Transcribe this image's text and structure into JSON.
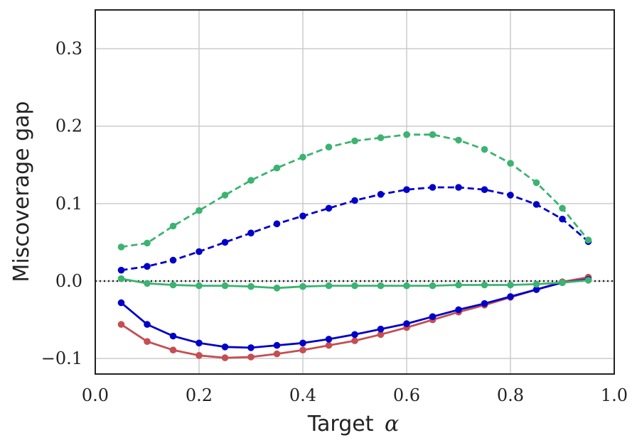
{
  "chart_data": {
    "type": "line",
    "title": "",
    "xlabel": "Target",
    "xlabel_symbol": "α",
    "ylabel": "Miscoverage gap",
    "xlim": [
      0.0,
      1.0
    ],
    "ylim": [
      -0.12,
      0.35
    ],
    "xticks": [
      "0.0",
      "0.2",
      "0.4",
      "0.6",
      "0.8",
      "1.0"
    ],
    "xtick_values": [
      0.0,
      0.2,
      0.4,
      0.6,
      0.8,
      1.0
    ],
    "yticks": [
      "−0.1",
      "0.0",
      "0.1",
      "0.2",
      "0.3"
    ],
    "ytick_values": [
      -0.1,
      0.0,
      0.1,
      0.2,
      0.3
    ],
    "grid": true,
    "reference_line": {
      "y": 0.0,
      "style": "dotted",
      "color": "#222222"
    },
    "x": [
      0.05,
      0.1,
      0.15,
      0.2,
      0.25,
      0.3,
      0.35,
      0.4,
      0.45,
      0.5,
      0.55,
      0.6,
      0.65,
      0.7,
      0.75,
      0.8,
      0.85,
      0.9,
      0.95
    ],
    "series": [
      {
        "color": "#c44e52",
        "dash": "solid",
        "values": [
          -0.056,
          -0.078,
          -0.089,
          -0.096,
          -0.099,
          -0.098,
          -0.094,
          -0.089,
          -0.083,
          -0.077,
          -0.069,
          -0.06,
          -0.05,
          -0.04,
          -0.031,
          -0.021,
          -0.011,
          -0.001,
          0.005
        ]
      },
      {
        "color": "#0000c8",
        "dash": "solid",
        "values": [
          -0.028,
          -0.056,
          -0.071,
          -0.08,
          -0.085,
          -0.086,
          -0.083,
          -0.08,
          -0.075,
          -0.069,
          -0.062,
          -0.055,
          -0.046,
          -0.037,
          -0.029,
          -0.02,
          -0.011,
          -0.002,
          0.002
        ]
      },
      {
        "color": "#3cb371",
        "dash": "solid",
        "values": [
          0.003,
          -0.003,
          -0.005,
          -0.006,
          -0.006,
          -0.007,
          -0.009,
          -0.007,
          -0.006,
          -0.006,
          -0.006,
          -0.006,
          -0.006,
          -0.005,
          -0.005,
          -0.005,
          -0.004,
          -0.002,
          0.001
        ]
      },
      {
        "color": "#0000c8",
        "dash": "dashed",
        "values": [
          0.014,
          0.019,
          0.027,
          0.038,
          0.05,
          0.062,
          0.074,
          0.084,
          0.094,
          0.104,
          0.112,
          0.118,
          0.121,
          0.121,
          0.118,
          0.111,
          0.099,
          0.08,
          0.051
        ]
      },
      {
        "color": "#3cb371",
        "dash": "dashed",
        "values": [
          0.044,
          0.049,
          0.071,
          0.091,
          0.111,
          0.13,
          0.146,
          0.16,
          0.173,
          0.181,
          0.185,
          0.189,
          0.189,
          0.182,
          0.17,
          0.152,
          0.127,
          0.094,
          0.053
        ]
      }
    ]
  }
}
